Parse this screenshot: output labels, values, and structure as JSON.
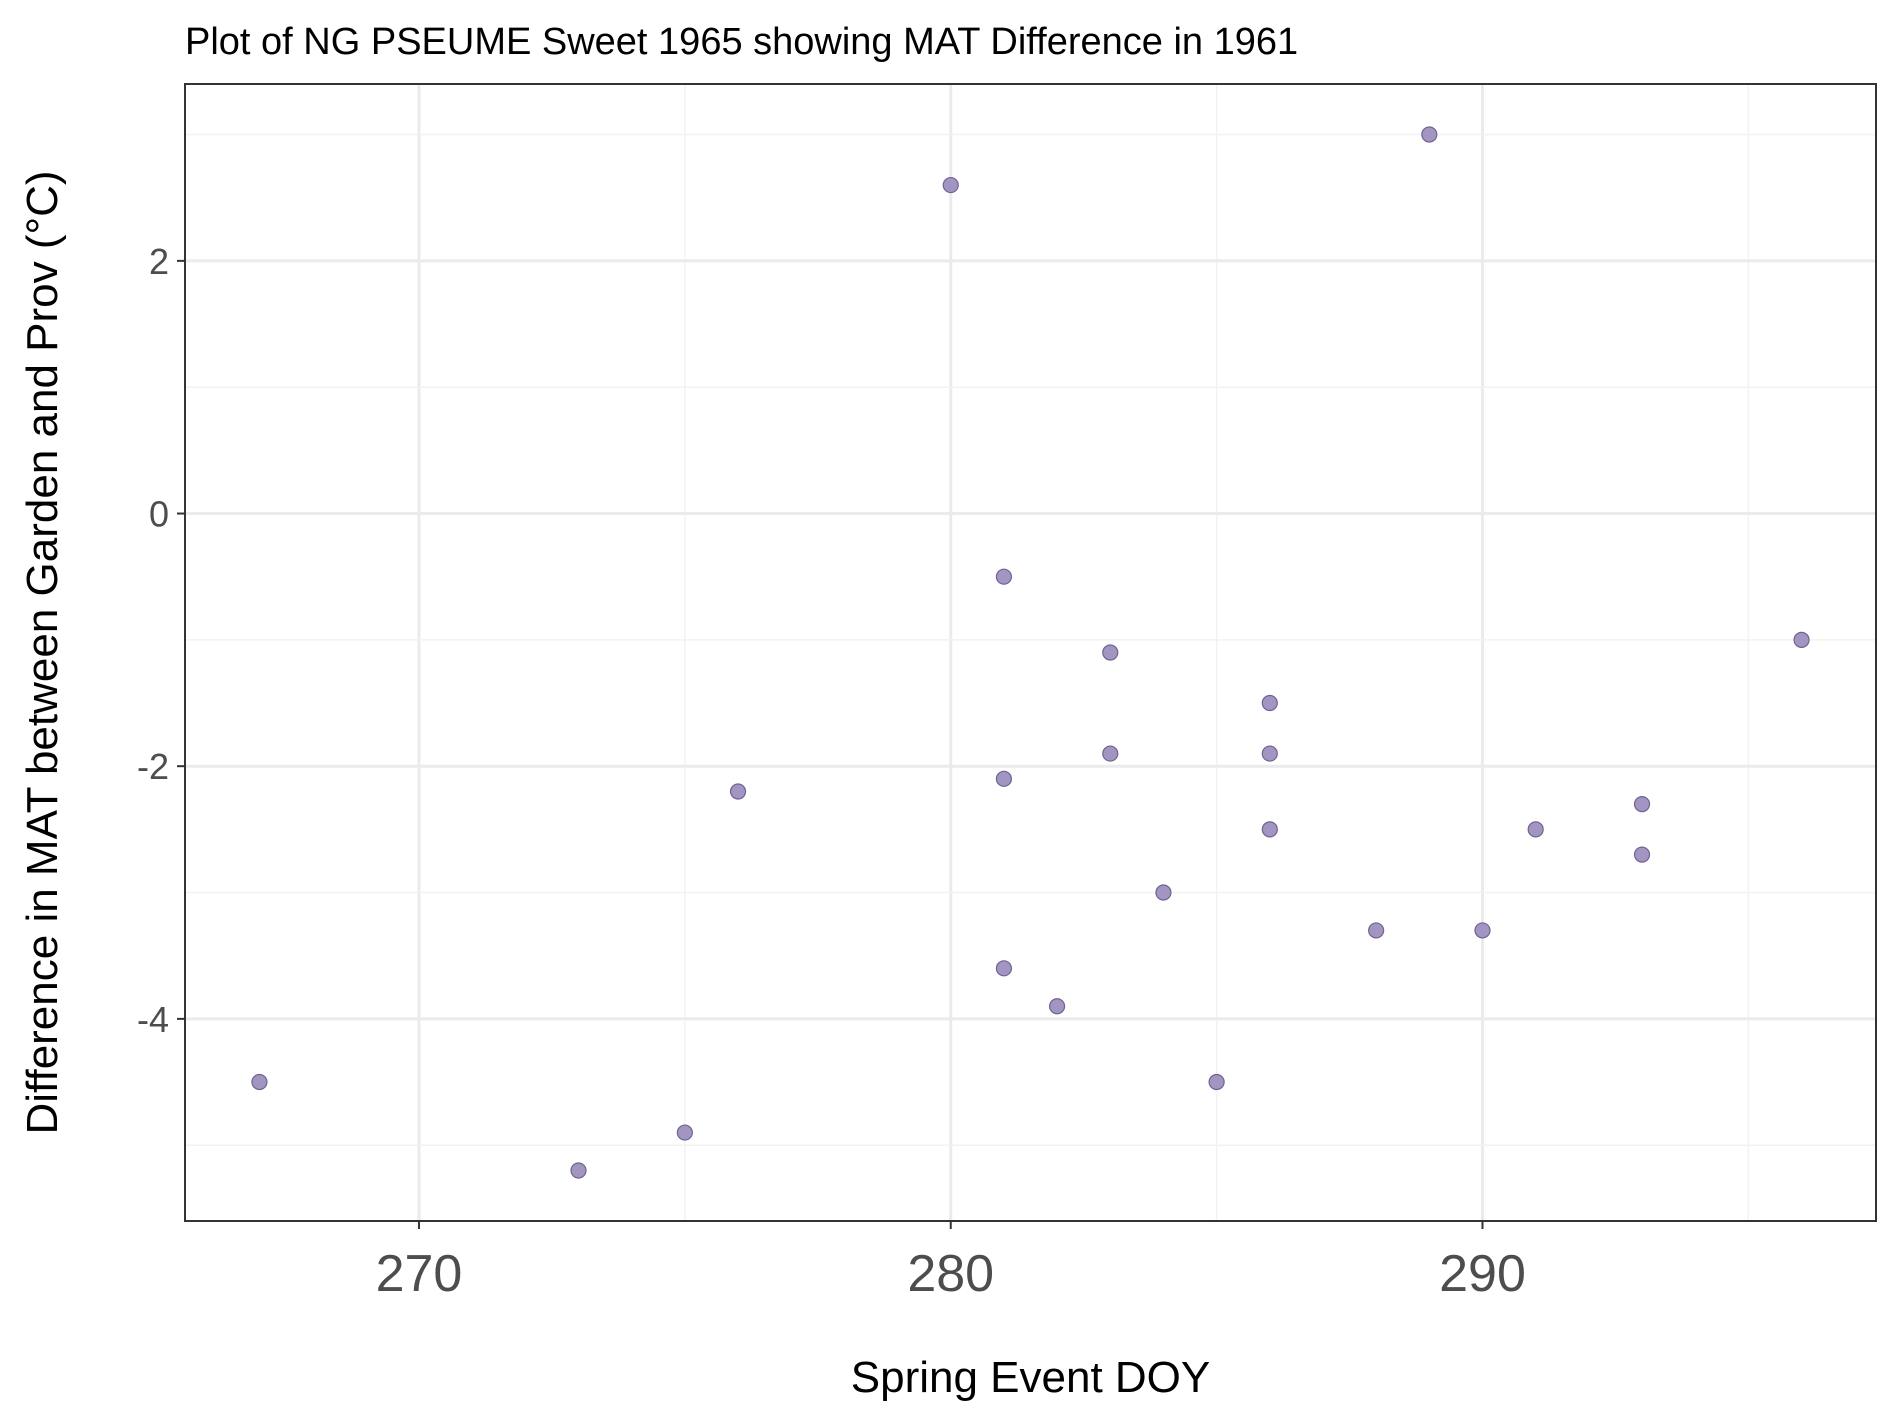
{
  "chart_data": {
    "type": "scatter",
    "title": "Plot of NG PSEUME Sweet 1965 showing MAT Difference in 1961",
    "xlabel": "Spring Event DOY",
    "ylabel": "Difference in MAT between Garden and Prov (°C)",
    "xlim": [
      265.6,
      297.4
    ],
    "ylim": [
      -5.6,
      3.4
    ],
    "x_ticks": [
      270,
      280,
      290
    ],
    "x_tick_labels": [
      "270",
      "280",
      "290"
    ],
    "y_ticks": [
      -4,
      -2,
      0,
      2
    ],
    "y_tick_labels": [
      "-4",
      "-2",
      "0",
      "2"
    ],
    "grid": true,
    "legend": "none",
    "point_color": "#9d8fbf",
    "points": [
      {
        "x": 267,
        "y": -4.5
      },
      {
        "x": 273,
        "y": -5.2
      },
      {
        "x": 275,
        "y": -4.9
      },
      {
        "x": 276,
        "y": -2.2
      },
      {
        "x": 280,
        "y": 2.6
      },
      {
        "x": 281,
        "y": -0.5
      },
      {
        "x": 281,
        "y": -2.1
      },
      {
        "x": 281,
        "y": -3.6
      },
      {
        "x": 282,
        "y": -3.9
      },
      {
        "x": 283,
        "y": -1.1
      },
      {
        "x": 283,
        "y": -1.9
      },
      {
        "x": 284,
        "y": -3.0
      },
      {
        "x": 285,
        "y": -4.5
      },
      {
        "x": 286,
        "y": -1.5
      },
      {
        "x": 286,
        "y": -1.9
      },
      {
        "x": 286,
        "y": -2.5
      },
      {
        "x": 288,
        "y": -3.3
      },
      {
        "x": 289,
        "y": 3.0
      },
      {
        "x": 290,
        "y": -3.3
      },
      {
        "x": 291,
        "y": -2.5
      },
      {
        "x": 293,
        "y": -2.3
      },
      {
        "x": 293,
        "y": -2.7
      },
      {
        "x": 296,
        "y": -1.0
      }
    ]
  }
}
